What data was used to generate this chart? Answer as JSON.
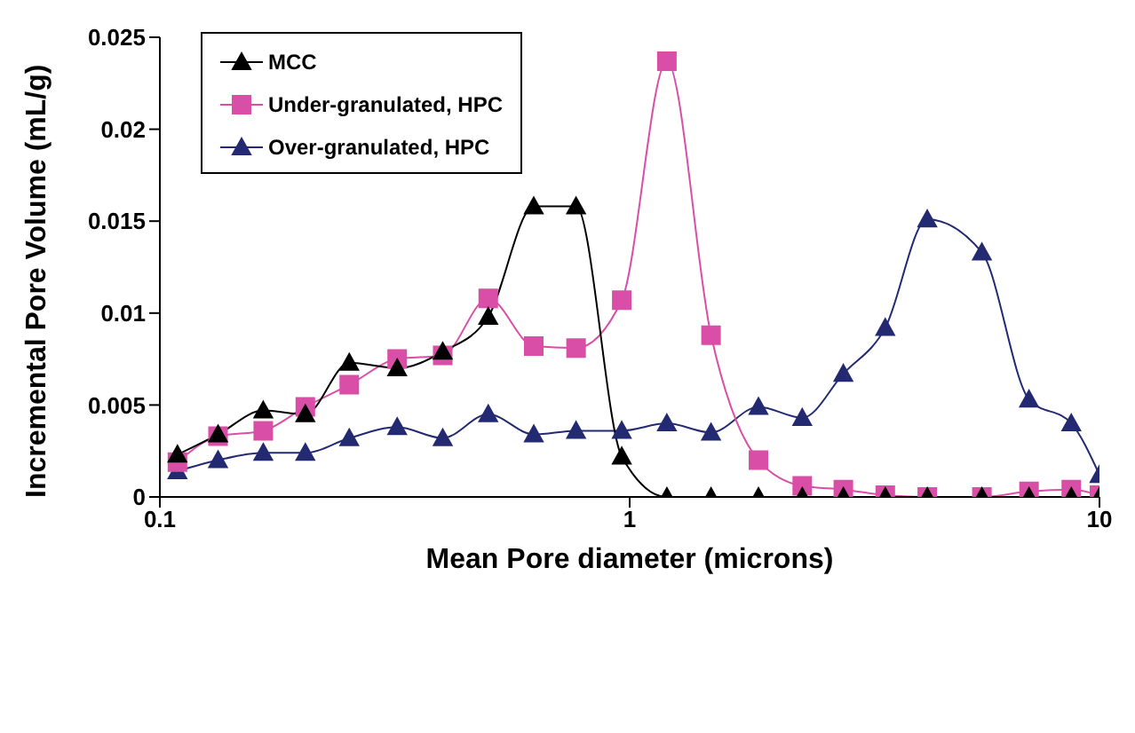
{
  "chart_data": {
    "type": "line",
    "xlabel": "Mean Pore diameter (microns)",
    "ylabel": "Incremental Pore Volume (mL/g)",
    "x": [
      0.109,
      0.133,
      0.166,
      0.204,
      0.253,
      0.32,
      0.4,
      0.5,
      0.625,
      0.769,
      0.962,
      1.2,
      1.49,
      1.88,
      2.33,
      2.85,
      3.5,
      4.3,
      5.62,
      7.08,
      8.71,
      10
    ],
    "series": [
      {
        "name": "MCC",
        "color": "#000000",
        "marker": "triangle",
        "values": [
          0.0023,
          0.0034,
          0.0047,
          0.0045,
          0.0073,
          0.007,
          0.0079,
          0.0098,
          0.0158,
          0.0158,
          0.0022,
          0,
          0,
          0,
          0,
          0,
          0,
          0,
          0,
          0,
          0,
          0
        ]
      },
      {
        "name": "Under-granulated, HPC",
        "color": "#d94ea6",
        "marker": "square",
        "values": [
          0.0019,
          0.0033,
          0.0036,
          0.0049,
          0.0061,
          0.0075,
          0.0077,
          0.0108,
          0.0082,
          0.0081,
          0.0107,
          0.0237,
          0.0088,
          0.002,
          0.0006,
          0.0004,
          0.0001,
          0,
          0,
          0.0003,
          0.0004,
          0.0001
        ]
      },
      {
        "name": "Over-granulated, HPC",
        "color": "#232a72",
        "marker": "triangle",
        "values": [
          0.0014,
          0.002,
          0.0024,
          0.0024,
          0.0032,
          0.0038,
          0.0032,
          0.0045,
          0.0034,
          0.0036,
          0.0036,
          0.004,
          0.0035,
          0.0049,
          0.0043,
          0.0067,
          0.0092,
          0.0151,
          0.0133,
          0.0053,
          0.004,
          0.0012
        ]
      }
    ],
    "log": "x",
    "xlim": [
      0.1,
      10
    ],
    "xticks": [
      0.1,
      1,
      10
    ],
    "ylim": [
      0,
      0.025
    ],
    "yticks": [
      0,
      0.005,
      0.01,
      0.015,
      0.02,
      0.025
    ],
    "grid": false,
    "legend": "top left"
  }
}
